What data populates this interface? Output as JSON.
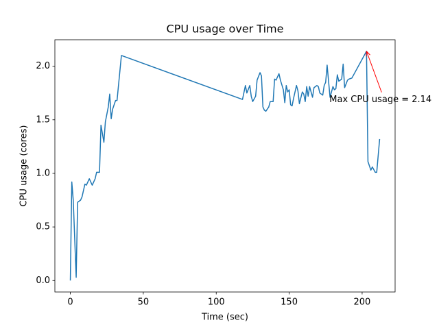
{
  "chart_data": {
    "type": "line",
    "title": "CPU usage over Time",
    "xlabel": "Time (sec)",
    "ylabel": "CPU usage (cores)",
    "color": "#1f77b4",
    "x": [
      0,
      1,
      2,
      4,
      5,
      7,
      8,
      10,
      11,
      13,
      15,
      17,
      18,
      20,
      21,
      23,
      24,
      26,
      27,
      28,
      29,
      31,
      32,
      35,
      118,
      120,
      121,
      123,
      124,
      125,
      127,
      128,
      130,
      131,
      132,
      133,
      134,
      136,
      137,
      139,
      140,
      141,
      143,
      144,
      146,
      147,
      148,
      149,
      150,
      151,
      152,
      153,
      155,
      156,
      157,
      159,
      160,
      161,
      162,
      163,
      164,
      166,
      167,
      169,
      170,
      171,
      173,
      174,
      175,
      176,
      177,
      178,
      180,
      181,
      182,
      183,
      184,
      186,
      187,
      188,
      190,
      191,
      193,
      203,
      204,
      206,
      207,
      209,
      210,
      212
    ],
    "values": [
      0,
      0.92,
      0.75,
      0.03,
      0.73,
      0.75,
      0.78,
      0.9,
      0.89,
      0.95,
      0.89,
      0.95,
      1.01,
      1.01,
      1.45,
      1.29,
      1.48,
      1.62,
      1.74,
      1.51,
      1.6,
      1.68,
      1.68,
      2.1,
      1.69,
      1.82,
      1.75,
      1.82,
      1.72,
      1.67,
      1.72,
      1.87,
      1.94,
      1.91,
      1.62,
      1.59,
      1.58,
      1.62,
      1.67,
      1.67,
      1.88,
      1.87,
      1.93,
      1.87,
      1.78,
      1.66,
      1.82,
      1.76,
      1.78,
      1.64,
      1.63,
      1.7,
      1.82,
      1.77,
      1.65,
      1.76,
      1.74,
      1.67,
      1.81,
      1.72,
      1.81,
      1.71,
      1.8,
      1.82,
      1.81,
      1.75,
      1.73,
      1.82,
      1.85,
      2.01,
      1.86,
      1.71,
      1.81,
      1.78,
      1.79,
      1.92,
      1.86,
      1.88,
      2.02,
      1.8,
      1.87,
      1.88,
      1.89,
      2.14,
      1.11,
      1.03,
      1.06,
      1.01,
      1.01,
      1.32
    ],
    "xlim": [
      -10.6,
      222.6
    ],
    "ylim": [
      -0.107,
      2.247
    ],
    "xticks": [
      0,
      50,
      100,
      150,
      200
    ],
    "yticks": [
      {
        "value": 0,
        "label": "0.0"
      },
      {
        "value": 0.5,
        "label": "0.5"
      },
      {
        "value": 1,
        "label": "1.0"
      },
      {
        "value": 1.5,
        "label": "1.5"
      },
      {
        "value": 2,
        "label": "2.0"
      }
    ],
    "annotation": {
      "text": "Max CPU usage = 2.14",
      "x": 203,
      "y": 2.14,
      "color": "red"
    }
  }
}
